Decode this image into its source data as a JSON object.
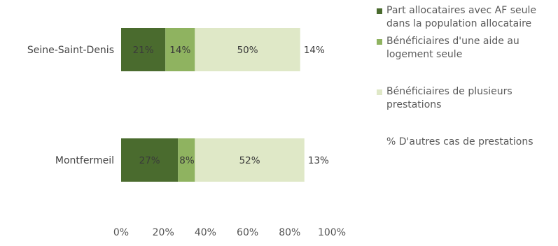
{
  "chart_data": {
    "type": "bar",
    "orientation": "horizontal",
    "stacked": true,
    "categories": [
      "Seine-Saint-Denis",
      "Montfermeil"
    ],
    "series": [
      {
        "name": "Part allocataires avec AF seule dans la population allocataire",
        "values": [
          21,
          27
        ],
        "labels": [
          "21%",
          "27%"
        ],
        "color": "#4a6b2e"
      },
      {
        "name": "Bénéficiaires d'une aide au logement seule",
        "values": [
          14,
          8
        ],
        "labels": [
          "14%",
          "8%"
        ],
        "color": "#8fb360"
      },
      {
        "name": "Bénéficiaires de plusieurs prestations",
        "values": [
          50,
          52
        ],
        "labels": [
          "50%",
          "52%"
        ],
        "color": "#dfe8c7"
      },
      {
        "name": "% D'autres cas de prestations",
        "values": [
          14,
          13
        ],
        "labels": [
          "14%",
          "13%"
        ],
        "color": "#ffffff"
      }
    ],
    "xlim": [
      0,
      100
    ],
    "xticks": [
      "0%",
      "20%",
      "40%",
      "60%",
      "80%",
      "100%"
    ],
    "grid": false,
    "legend_position": "right"
  }
}
